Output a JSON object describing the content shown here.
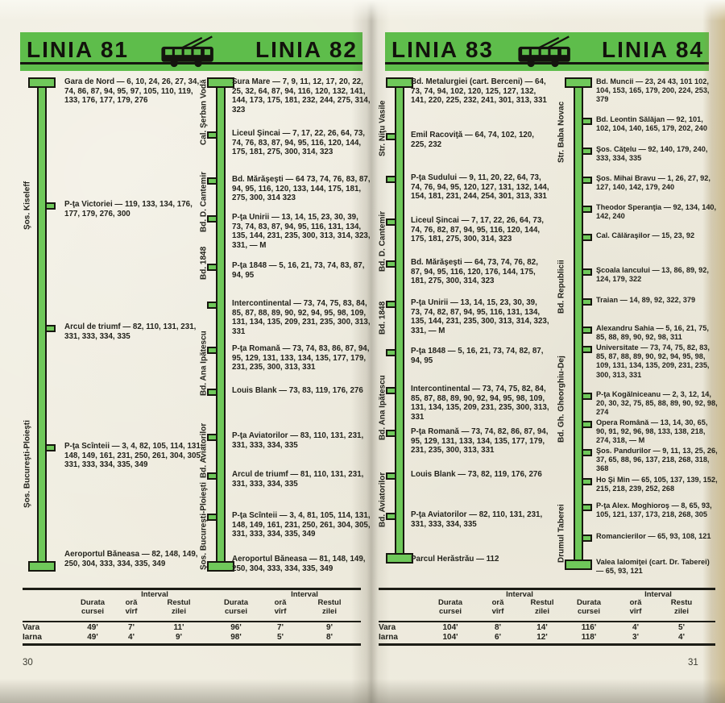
{
  "pages": [
    {
      "page_number": "30",
      "header": {
        "title_left": "LINIA 81",
        "title_right": "LINIA 82",
        "icon": "trolleybus-icon"
      },
      "lines": [
        {
          "title": "LINIA 81",
          "streets": [
            "Şos. Kiseleff",
            "Şos. Bucureşti-Ploieşti"
          ],
          "stops": [
            {
              "name": "Gara de Nord",
              "routes": "6, 10, 24, 26, 27, 34, 74, 86, 87, 94, 95, 97, 105, 110, 119, 133, 176, 177, 179, 276"
            },
            {
              "name": "P-ţa Victoriei",
              "routes": "119, 133, 134, 176, 177, 179, 276, 300"
            },
            {
              "name": "Arcul de triumf",
              "routes": "82, 110, 131, 231, 331, 333, 334, 335"
            },
            {
              "name": "P-ţa Scînteii",
              "routes": "3, 4, 82, 105, 114, 131, 148, 149, 161, 231, 250, 261, 304, 305, 331, 333, 334, 335, 349"
            },
            {
              "name": "Aeroportul Băneasa",
              "routes": "82, 148, 149, 250, 304, 333, 334, 335, 349"
            }
          ]
        },
        {
          "title": "LINIA 82",
          "streets": [
            "Cal. Şerban Vodă",
            "Bd. D. Cantemir",
            "Bd. 1848",
            "Bd. Ana Ipătescu",
            "Bd. Aviatorilor",
            "Şos. Bucureşti-Ploieşti"
          ],
          "stops": [
            {
              "name": "Sura Mare",
              "routes": "7, 9, 11, 12, 17, 20, 22, 25, 32, 64, 87, 94, 116, 120, 132, 141, 144, 173, 175, 181, 232, 244, 275, 314, 323"
            },
            {
              "name": "Liceul Şincai",
              "routes": "7, 17, 22, 26, 64, 73, 74, 76, 83, 87, 94, 95, 116, 120, 144, 175, 181, 275, 300, 314, 323"
            },
            {
              "name": "Bd. Mărăşeşti",
              "routes": "64 73, 74, 76, 83, 87, 94, 95, 116, 120, 133, 144, 175, 181, 275, 300, 314 323"
            },
            {
              "name": "P-ţa Unirii",
              "routes": "13, 14, 15, 23, 30, 39, 73, 74, 83, 87, 94, 95, 116, 131, 134, 135, 144, 231, 235, 300, 313, 314, 323, 331, — M"
            },
            {
              "name": "P-ţa 1848",
              "routes": "5, 16, 21, 73, 74, 83, 87, 94, 95"
            },
            {
              "name": "Intercontinental",
              "routes": "73, 74, 75, 83, 84, 85, 87, 88, 89, 90, 92, 94, 95, 98, 109, 131, 134, 135, 209, 231, 235, 300, 313, 331"
            },
            {
              "name": "P-ţa Romană",
              "routes": "73, 74, 83, 86, 87, 94, 95, 129, 131, 133, 134, 135, 177, 179, 231, 235, 300, 313, 331"
            },
            {
              "name": "Louis Blank",
              "routes": "73, 83, 119, 176, 276"
            },
            {
              "name": "P-ţa Aviatorilor",
              "routes": "83, 110, 131, 231, 331, 333, 334, 335"
            },
            {
              "name": "Arcul de triumf",
              "routes": "81, 110, 131, 231, 331, 333, 334, 335"
            },
            {
              "name": "P-ţa Scînteii",
              "routes": "3, 4, 81, 105, 114, 131, 148, 149, 161, 231, 250, 261, 304, 305, 331, 333, 334, 335, 349"
            },
            {
              "name": "Aeroportul Băneasa",
              "routes": "81, 148, 149, 250, 304, 333, 334, 335, 349"
            }
          ]
        }
      ],
      "table": {
        "interval_label": "Interval",
        "columns": [
          "Durata cursei",
          "oră vîrf",
          "Restul zilei",
          "Durata cursei",
          "oră vîrf",
          "Restul zilei"
        ],
        "rows": [
          {
            "label": "Vara",
            "values": [
              "49'",
              "7'",
              "11'",
              "96'",
              "7'",
              "9'"
            ]
          },
          {
            "label": "Iarna",
            "values": [
              "49'",
              "4'",
              "9'",
              "98'",
              "5'",
              "8'"
            ]
          }
        ]
      }
    },
    {
      "page_number": "31",
      "header": {
        "title_left": "LINIA 83",
        "title_right": "LINIA 84",
        "icon": "trolleybus-icon"
      },
      "lines": [
        {
          "title": "LINIA 83",
          "streets": [
            "Str. Niţu Vasile",
            "Bd. D. Cantemir",
            "Bd. 1848",
            "Bd. Ana Ipătescu",
            "Bd. Aviatorilor"
          ],
          "stops": [
            {
              "name": "Bd. Metalurgiei (cart. Berceni)",
              "routes": "64, 73, 74, 94, 102, 120, 125, 127, 132, 141, 220, 225, 232, 241, 301, 313, 331"
            },
            {
              "name": "Emil Racoviţă",
              "routes": "64, 74, 102, 120, 225, 232"
            },
            {
              "name": "P-ţa Sudului",
              "routes": "9, 11, 20, 22, 64, 73, 74, 76, 94, 95, 120, 127, 131, 132, 144, 154, 181, 231, 244, 254, 301, 313, 331"
            },
            {
              "name": "Liceul Şincai",
              "routes": "7, 17, 22, 26, 64, 73, 74, 76, 82, 87, 94, 95, 116, 120, 144, 175, 181, 275, 300, 314, 323"
            },
            {
              "name": "Bd. Mărăşeşti",
              "routes": "64, 73, 74, 76, 82, 87, 94, 95, 116, 120, 176, 144, 175, 181, 275, 300, 314, 323"
            },
            {
              "name": "P-ţa Unirii",
              "routes": "13, 14, 15, 23, 30, 39, 73, 74, 82, 87, 94, 95, 116, 131, 134, 135, 144, 231, 235, 300, 313, 314, 323, 331, — M"
            },
            {
              "name": "P-ţa 1848",
              "routes": "5, 16, 21, 73, 74, 82, 87, 94, 95"
            },
            {
              "name": "Intercontinental",
              "routes": "73, 74, 75, 82, 84, 85, 87, 88, 89, 90, 92, 94, 95, 98, 109, 131, 134, 135, 209, 231, 235, 300, 313, 331"
            },
            {
              "name": "P-ţa Romană",
              "routes": "73, 74, 82, 86, 87, 94, 95, 129, 131, 133, 134, 135, 177, 179, 231, 235, 300, 313, 331"
            },
            {
              "name": "Louis Blank",
              "routes": "73, 82, 119, 176, 276"
            },
            {
              "name": "P-ţa Aviatorilor",
              "routes": "82, 110, 131, 231, 331, 333, 334, 335"
            },
            {
              "name": "Parcul Herăstrău",
              "routes": "112"
            }
          ]
        },
        {
          "title": "LINIA 84",
          "streets": [
            "Str. Baba Novac",
            "Bd. Republicii",
            "Bd. Gh. Gheorghiu-Dej",
            "Drumul Taberei"
          ],
          "stops": [
            {
              "name": "Bd. Muncii",
              "routes": "23, 24 43, 101 102, 104, 153, 165, 179, 200, 224, 253, 379"
            },
            {
              "name": "Bd. Leontin Sălăjan",
              "routes": "92, 101, 102, 104, 140, 165, 179, 202, 240"
            },
            {
              "name": "Şos. Căţelu",
              "routes": "92, 140, 179, 240, 333, 334, 335"
            },
            {
              "name": "Şos. Mihai Bravu",
              "routes": "1, 26, 27, 92, 127, 140, 142, 179, 240"
            },
            {
              "name": "Theodor Speranţia",
              "routes": "92, 134, 140, 142, 240"
            },
            {
              "name": "Cal. Călăraşilor",
              "routes": "15, 23, 92"
            },
            {
              "name": "Şcoala Iancului",
              "routes": "13, 86, 89, 92, 124, 179, 322"
            },
            {
              "name": "Traian",
              "routes": "14, 89, 92, 322, 379"
            },
            {
              "name": "Alexandru Sahia",
              "routes": "5, 16, 21, 75, 85, 88, 89, 90, 92, 98, 311"
            },
            {
              "name": "Universitate",
              "routes": "73, 74, 75, 82, 83, 85, 87, 88, 89, 90, 92, 94, 95, 98, 109, 131, 134, 135, 209, 231, 235, 300, 313, 331"
            },
            {
              "name": "P-ţa Kogălniceanu",
              "routes": "2, 3, 12, 14, 20, 30, 32, 75, 85, 88, 89, 90, 92, 98, 274"
            },
            {
              "name": "Opera Română",
              "routes": "13, 14, 30, 65, 90, 91, 92, 96, 98, 133, 138, 218, 274, 318, — M"
            },
            {
              "name": "Şos. Pandurilor",
              "routes": "9, 11, 13, 25, 26, 37, 65, 88, 96, 137, 218, 268, 318, 368"
            },
            {
              "name": "Ho Şi Min",
              "routes": "65, 105, 137, 139, 152, 215, 218, 239, 252, 268"
            },
            {
              "name": "P-ţa Alex. Moghioroş",
              "routes": "8, 65, 93, 105, 121, 137, 173, 218, 268, 305"
            },
            {
              "name": "Romancierilor",
              "routes": "65, 93, 108, 121"
            },
            {
              "name": "Valea Ialomiţei (cart. Dr. Taberei)",
              "routes": "65, 93, 121"
            }
          ]
        }
      ],
      "table": {
        "interval_label": "Interval",
        "columns": [
          "Durata cursei",
          "oră vîrf",
          "Restul zilei",
          "Durata cursei",
          "oră vîrf",
          "Restu zilei"
        ],
        "rows": [
          {
            "label": "Vara",
            "values": [
              "104'",
              "8'",
              "14'",
              "116'",
              "4'",
              "5'"
            ]
          },
          {
            "label": "Iarna",
            "values": [
              "104'",
              "6'",
              "12'",
              "118'",
              "3'",
              "4'"
            ]
          }
        ]
      }
    }
  ]
}
